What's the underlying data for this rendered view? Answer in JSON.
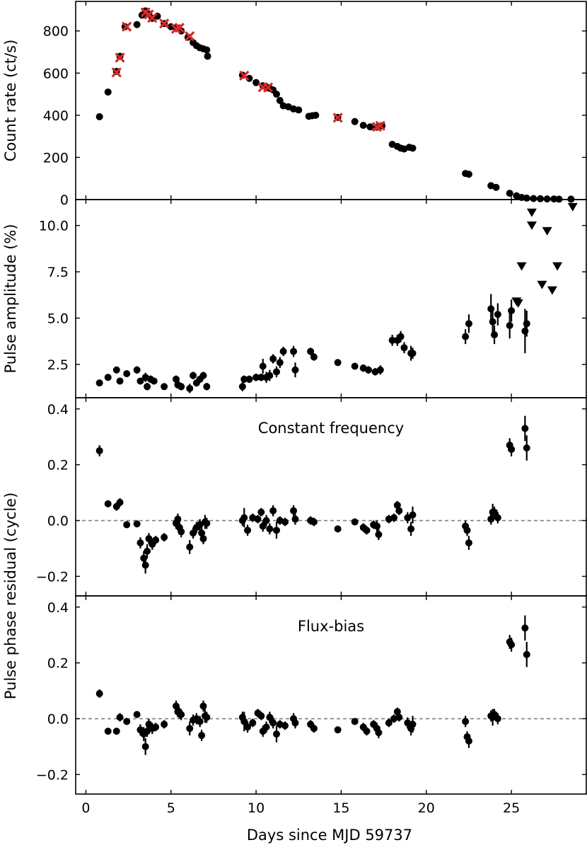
{
  "chart_data": [
    {
      "type": "scatter",
      "ylabel": "Count rate (ct/s)",
      "xlim": [
        -0.6,
        29.4
      ],
      "ylim": [
        0,
        940
      ],
      "yticks": [
        0,
        200,
        400,
        600,
        800
      ],
      "series": [
        {
          "marker": "circle",
          "color": "#000000",
          "x": [
            0.8,
            1.3,
            1.8,
            2.0,
            2.3,
            3.0,
            3.3,
            3.5,
            3.7,
            3.9,
            4.2,
            4.6,
            5.0,
            5.3,
            5.6,
            6.0,
            6.3,
            6.5,
            6.7,
            6.9,
            7.1,
            7.15,
            9.2,
            9.6,
            10.0,
            10.4,
            10.6,
            10.8,
            11.0,
            11.2,
            11.4,
            11.6,
            11.9,
            12.2,
            12.5,
            13.1,
            13.3,
            13.5,
            14.8,
            15.8,
            16.3,
            16.7,
            17.1,
            17.4,
            18.0,
            18.3,
            18.5,
            18.7,
            19.0,
            19.2,
            22.3,
            22.5,
            23.8,
            24.1,
            24.9,
            25.3,
            25.6,
            25.9,
            26.3,
            26.7,
            27.1,
            27.5,
            27.8,
            28.5
          ],
          "y": [
            393,
            510,
            608,
            680,
            820,
            830,
            875,
            895,
            880,
            860,
            870,
            835,
            820,
            815,
            800,
            770,
            745,
            730,
            720,
            715,
            710,
            680,
            590,
            575,
            555,
            540,
            535,
            528,
            520,
            500,
            470,
            445,
            440,
            430,
            425,
            395,
            398,
            400,
            390,
            370,
            352,
            345,
            343,
            350,
            262,
            252,
            244,
            240,
            248,
            244,
            124,
            120,
            66,
            58,
            30,
            18,
            10,
            7,
            5,
            4,
            3,
            3,
            2,
            2
          ]
        },
        {
          "marker": "x",
          "color": "#d62728",
          "x": [
            1.8,
            2.0,
            2.4,
            3.5,
            3.7,
            3.9,
            4.6,
            5.3,
            5.5,
            6.1,
            9.3,
            10.4,
            10.7,
            14.8,
            17.1,
            17.3
          ],
          "y": [
            603,
            673,
            820,
            888,
            878,
            862,
            835,
            810,
            815,
            775,
            588,
            533,
            532,
            388,
            345,
            350
          ]
        }
      ]
    },
    {
      "type": "scatter",
      "ylabel": "Pulse amplitude (%)",
      "xlim": [
        -0.6,
        29.4
      ],
      "ylim": [
        0.7,
        11.4
      ],
      "yticks": [
        "2.5",
        "5.0",
        "7.5",
        "10.0"
      ],
      "series": [
        {
          "marker": "circle-errorbar",
          "color": "#000000",
          "x": [
            0.8,
            1.3,
            1.8,
            2.0,
            2.4,
            3.0,
            3.2,
            3.5,
            3.6,
            3.8,
            4.0,
            4.6,
            5.3,
            5.4,
            5.6,
            6.1,
            6.3,
            6.5,
            6.7,
            6.9,
            7.1,
            9.2,
            9.3,
            9.6,
            10.0,
            10.3,
            10.4,
            10.6,
            10.8,
            11.0,
            11.2,
            11.4,
            11.6,
            12.2,
            12.3,
            13.2,
            13.4,
            14.8,
            15.8,
            16.3,
            16.6,
            17.0,
            17.3,
            18.0,
            18.3,
            18.5,
            18.7,
            19.1,
            19.2,
            22.3,
            22.5,
            23.8,
            23.9,
            24.0,
            24.2,
            24.9,
            25.0,
            25.8,
            25.9
          ],
          "y": [
            1.5,
            1.8,
            2.2,
            1.6,
            2.0,
            2.2,
            1.6,
            1.8,
            1.3,
            1.7,
            1.6,
            1.3,
            1.7,
            1.4,
            1.3,
            1.2,
            1.9,
            1.5,
            1.7,
            1.9,
            1.3,
            1.3,
            1.7,
            1.7,
            1.8,
            1.8,
            2.4,
            1.8,
            1.9,
            2.8,
            2.1,
            2.6,
            3.2,
            3.2,
            2.2,
            3.2,
            2.9,
            2.6,
            2.4,
            2.3,
            2.2,
            2.1,
            2.2,
            3.8,
            3.8,
            4.0,
            3.4,
            3.1,
            3.1,
            4.0,
            4.7,
            5.5,
            4.8,
            4.1,
            5.2,
            4.6,
            5.4,
            4.3,
            4.7
          ],
          "yerr": [
            0.1,
            0.12,
            0.15,
            0.15,
            0.15,
            0.2,
            0.15,
            0.25,
            0.2,
            0.2,
            0.15,
            0.15,
            0.2,
            0.2,
            0.2,
            0.25,
            0.2,
            0.2,
            0.2,
            0.2,
            0.2,
            0.25,
            0.2,
            0.2,
            0.2,
            0.2,
            0.4,
            0.3,
            0.3,
            0.25,
            0.3,
            0.3,
            0.25,
            0.3,
            0.4,
            0.2,
            0.2,
            0.15,
            0.15,
            0.2,
            0.2,
            0.2,
            0.25,
            0.3,
            0.3,
            0.3,
            0.3,
            0.4,
            0.3,
            0.4,
            0.5,
            0.8,
            0.6,
            0.5,
            0.6,
            0.7,
            0.6,
            1.2,
            0.7
          ]
        },
        {
          "marker": "triangle-down",
          "color": "#000000",
          "x": [
            25.3,
            25.4,
            25.6,
            26.2,
            26.2,
            26.8,
            27.1,
            27.4,
            27.7,
            28.6
          ],
          "y": [
            5.9,
            5.8,
            7.8,
            10.0,
            10.7,
            6.8,
            9.7,
            6.5,
            7.8,
            11.0
          ]
        }
      ]
    },
    {
      "type": "scatter",
      "ylabel": "",
      "annotation": "Constant frequency",
      "xlim": [
        -0.6,
        29.4
      ],
      "ylim": [
        -0.27,
        0.44
      ],
      "yticks": [
        "−0.2",
        "0.0",
        "0.2",
        "0.4"
      ],
      "reference_line": {
        "y": 0.0,
        "style": "dashed",
        "color": "#808080"
      },
      "series": [
        {
          "marker": "circle-errorbar",
          "color": "#000000",
          "x": [
            0.8,
            1.3,
            1.8,
            2.0,
            2.4,
            3.0,
            3.2,
            3.4,
            3.5,
            3.6,
            3.7,
            3.9,
            4.1,
            4.6,
            5.3,
            5.4,
            5.5,
            5.6,
            6.1,
            6.3,
            6.5,
            6.7,
            6.8,
            6.9,
            7.0,
            7.1,
            9.2,
            9.3,
            9.5,
            9.8,
            10.1,
            10.3,
            10.4,
            10.6,
            10.8,
            11.0,
            11.2,
            11.4,
            11.7,
            12.2,
            12.3,
            13.2,
            13.4,
            14.8,
            15.8,
            16.3,
            16.5,
            16.9,
            17.1,
            17.2,
            17.8,
            18.1,
            18.3,
            18.4,
            18.9,
            19.1,
            19.2,
            22.3,
            22.4,
            22.5,
            23.8,
            23.9,
            24.0,
            24.2,
            24.9,
            25.0,
            25.8,
            25.9
          ],
          "y": [
            0.25,
            0.06,
            0.05,
            0.065,
            -0.015,
            -0.012,
            -0.08,
            -0.135,
            -0.16,
            -0.11,
            -0.065,
            -0.085,
            -0.07,
            -0.06,
            -0.01,
            0.005,
            -0.025,
            -0.04,
            -0.095,
            -0.045,
            -0.025,
            -0.015,
            -0.045,
            -0.065,
            -0.005,
            -0.01,
            0.0,
            0.01,
            -0.035,
            0.01,
            0.005,
            0.03,
            -0.02,
            0.0,
            -0.03,
            0.035,
            -0.035,
            0.0,
            -0.005,
            0.035,
            0.005,
            0.0,
            -0.005,
            -0.03,
            -0.005,
            -0.025,
            -0.035,
            -0.015,
            -0.02,
            -0.05,
            0.005,
            0.01,
            0.055,
            0.035,
            0.01,
            -0.03,
            0.02,
            -0.02,
            -0.035,
            -0.08,
            0.005,
            0.03,
            0.03,
            0.01,
            0.27,
            0.255,
            0.33,
            0.26
          ],
          "yerr": [
            0.02,
            0.012,
            0.015,
            0.015,
            0.012,
            0.012,
            0.02,
            0.025,
            0.03,
            0.025,
            0.02,
            0.02,
            0.015,
            0.015,
            0.02,
            0.02,
            0.02,
            0.02,
            0.025,
            0.02,
            0.02,
            0.02,
            0.02,
            0.02,
            0.025,
            0.02,
            0.02,
            0.035,
            0.02,
            0.015,
            0.015,
            0.015,
            0.02,
            0.02,
            0.02,
            0.02,
            0.03,
            0.015,
            0.015,
            0.02,
            0.02,
            0.015,
            0.015,
            0.012,
            0.012,
            0.015,
            0.015,
            0.015,
            0.02,
            0.02,
            0.015,
            0.015,
            0.015,
            0.015,
            0.02,
            0.025,
            0.03,
            0.02,
            0.02,
            0.025,
            0.02,
            0.03,
            0.02,
            0.02,
            0.025,
            0.025,
            0.045,
            0.045
          ]
        }
      ]
    },
    {
      "type": "scatter",
      "xlabel": "Days since MJD 59737",
      "shared_ylabel": "Pulse phase residual (cycle)",
      "annotation": "Flux-bias",
      "xlim": [
        -0.6,
        29.4
      ],
      "ylim": [
        -0.27,
        0.44
      ],
      "xticks": [
        "0",
        "5",
        "10",
        "15",
        "20",
        "25"
      ],
      "yticks": [
        "−0.2",
        "0.0",
        "0.2",
        "0.4"
      ],
      "reference_line": {
        "y": 0.0,
        "style": "dashed",
        "color": "#808080"
      },
      "series": [
        {
          "marker": "circle-errorbar",
          "color": "#000000",
          "x": [
            0.8,
            1.3,
            1.8,
            2.0,
            2.4,
            3.0,
            3.2,
            3.4,
            3.5,
            3.6,
            3.7,
            3.9,
            4.1,
            4.6,
            5.3,
            5.4,
            5.5,
            5.6,
            6.1,
            6.3,
            6.5,
            6.7,
            6.8,
            6.9,
            7.0,
            7.1,
            9.2,
            9.3,
            9.5,
            9.8,
            10.1,
            10.3,
            10.4,
            10.6,
            10.8,
            11.0,
            11.2,
            11.4,
            11.7,
            12.2,
            12.3,
            13.2,
            13.4,
            14.8,
            15.8,
            16.3,
            16.5,
            16.9,
            17.1,
            17.2,
            17.8,
            18.1,
            18.3,
            18.4,
            18.9,
            19.1,
            19.2,
            22.3,
            22.4,
            22.5,
            23.8,
            23.9,
            24.0,
            24.2,
            24.9,
            25.0,
            25.8,
            25.9
          ],
          "y": [
            0.09,
            -0.045,
            -0.045,
            0.005,
            -0.01,
            0.015,
            -0.04,
            -0.055,
            -0.1,
            -0.045,
            -0.02,
            -0.035,
            -0.03,
            -0.02,
            0.045,
            0.025,
            0.02,
            0.015,
            -0.035,
            -0.005,
            0.0,
            -0.01,
            -0.06,
            0.045,
            0.01,
            0.005,
            0.005,
            -0.01,
            -0.03,
            -0.015,
            0.02,
            0.01,
            -0.045,
            -0.03,
            0.005,
            -0.015,
            -0.055,
            -0.02,
            -0.025,
            0.0,
            -0.015,
            -0.02,
            -0.035,
            -0.04,
            -0.01,
            -0.03,
            -0.045,
            -0.02,
            -0.035,
            -0.05,
            -0.015,
            0.0,
            0.025,
            0.005,
            -0.015,
            -0.035,
            -0.02,
            -0.01,
            -0.065,
            -0.08,
            0.01,
            0.005,
            0.015,
            0.0,
            0.275,
            0.265,
            0.325,
            0.23
          ],
          "yerr": [
            0.015,
            0.012,
            0.012,
            0.015,
            0.012,
            0.012,
            0.02,
            0.025,
            0.03,
            0.02,
            0.02,
            0.02,
            0.015,
            0.015,
            0.02,
            0.02,
            0.02,
            0.02,
            0.025,
            0.02,
            0.02,
            0.02,
            0.02,
            0.02,
            0.025,
            0.02,
            0.02,
            0.035,
            0.02,
            0.015,
            0.015,
            0.015,
            0.02,
            0.02,
            0.02,
            0.02,
            0.03,
            0.015,
            0.015,
            0.02,
            0.02,
            0.015,
            0.015,
            0.012,
            0.012,
            0.015,
            0.015,
            0.015,
            0.02,
            0.02,
            0.015,
            0.015,
            0.015,
            0.015,
            0.02,
            0.025,
            0.03,
            0.02,
            0.02,
            0.025,
            0.02,
            0.03,
            0.02,
            0.02,
            0.025,
            0.025,
            0.045,
            0.045
          ]
        }
      ]
    }
  ]
}
